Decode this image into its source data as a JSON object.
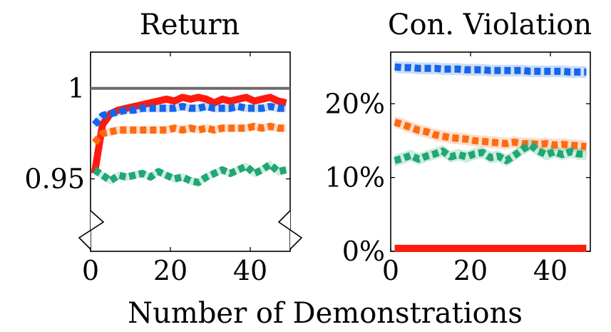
{
  "xlabel": "Number of Demonstrations",
  "chart_data": [
    {
      "type": "line",
      "title": "Return",
      "xlim": [
        0,
        50
      ],
      "ylim": [
        0.91,
        1.02
      ],
      "axis_break": true,
      "xticks": [
        0,
        20,
        40
      ],
      "xtick_labels": [
        "0",
        "20",
        "40"
      ],
      "yticks": [
        0.95,
        1
      ],
      "ytick_labels": [
        "0.95",
        "1"
      ],
      "x": [
        1,
        3,
        5,
        7,
        9,
        11,
        13,
        15,
        17,
        19,
        21,
        23,
        25,
        27,
        29,
        31,
        33,
        35,
        37,
        39,
        41,
        43,
        45,
        47,
        49
      ],
      "reference_line": {
        "y": 1.0,
        "color": "#6b6b6b"
      },
      "series": [
        {
          "color": "#ff1a0f",
          "style": "solid",
          "band": false,
          "values": [
            0.953,
            0.98,
            0.986,
            0.988,
            0.989,
            0.99,
            0.991,
            0.992,
            0.993,
            0.994,
            0.993,
            0.995,
            0.994,
            0.995,
            0.994,
            0.992,
            0.994,
            0.993,
            0.994,
            0.995,
            0.993,
            0.994,
            0.995,
            0.993,
            0.992
          ]
        },
        {
          "color": "#1565e8",
          "style": "dotted",
          "band": true,
          "values": [
            0.98,
            0.985,
            0.986,
            0.987,
            0.988,
            0.988,
            0.989,
            0.989,
            0.989,
            0.989,
            0.989,
            0.99,
            0.989,
            0.989,
            0.99,
            0.989,
            0.989,
            0.989,
            0.99,
            0.989,
            0.989,
            0.989,
            0.99,
            0.989,
            0.989
          ]
        },
        {
          "color": "#ff6a10",
          "style": "dotted",
          "band": true,
          "values": [
            0.97,
            0.975,
            0.976,
            0.977,
            0.977,
            0.977,
            0.977,
            0.977,
            0.977,
            0.977,
            0.978,
            0.977,
            0.978,
            0.977,
            0.978,
            0.977,
            0.978,
            0.978,
            0.978,
            0.978,
            0.979,
            0.978,
            0.979,
            0.978,
            0.978
          ]
        },
        {
          "color": "#1fa774",
          "style": "dotted",
          "band": true,
          "values": [
            0.955,
            0.952,
            0.949,
            0.952,
            0.951,
            0.952,
            0.953,
            0.951,
            0.954,
            0.952,
            0.95,
            0.951,
            0.949,
            0.948,
            0.951,
            0.953,
            0.955,
            0.953,
            0.955,
            0.957,
            0.953,
            0.955,
            0.958,
            0.954,
            0.955
          ]
        }
      ]
    },
    {
      "type": "line",
      "title": "Con. Violation",
      "xlim": [
        0,
        50
      ],
      "ylim": [
        0,
        27
      ],
      "xticks": [
        0,
        20,
        40
      ],
      "xtick_labels": [
        "0",
        "20",
        "40"
      ],
      "yticks": [
        0,
        10,
        20
      ],
      "ytick_labels": [
        "0%",
        "10%",
        "20%"
      ],
      "x": [
        1,
        3,
        5,
        7,
        9,
        11,
        13,
        15,
        17,
        19,
        21,
        23,
        25,
        27,
        29,
        31,
        33,
        35,
        37,
        39,
        41,
        43,
        45,
        47,
        49
      ],
      "series": [
        {
          "color": "#1565e8",
          "style": "dotted",
          "band": true,
          "values": [
            25.0,
            24.9,
            24.9,
            24.8,
            24.8,
            24.8,
            24.7,
            24.7,
            24.7,
            24.6,
            24.6,
            24.6,
            24.5,
            24.5,
            24.5,
            24.5,
            24.5,
            24.4,
            24.4,
            24.4,
            24.4,
            24.4,
            24.3,
            24.3,
            24.3
          ]
        },
        {
          "color": "#ff6a10",
          "style": "dotted",
          "band": true,
          "values": [
            17.5,
            17.2,
            16.8,
            16.4,
            16.2,
            15.8,
            15.6,
            15.4,
            15.3,
            15.2,
            15.0,
            14.9,
            14.8,
            14.7,
            14.6,
            14.8,
            14.6,
            14.6,
            14.5,
            14.6,
            14.4,
            14.5,
            14.4,
            14.3,
            14.2
          ]
        },
        {
          "color": "#1fa774",
          "style": "dotted",
          "band": true,
          "values": [
            12.3,
            12.6,
            13.0,
            12.5,
            12.9,
            13.2,
            13.6,
            12.8,
            13.1,
            12.8,
            13.2,
            13.4,
            12.7,
            12.9,
            12.3,
            13.0,
            13.8,
            14.4,
            13.6,
            13.1,
            13.5,
            13.1,
            13.5,
            13.2,
            13.2
          ]
        },
        {
          "color": "#ff1a0f",
          "style": "solid",
          "band": false,
          "values": [
            0.4,
            0.4,
            0.4,
            0.4,
            0.4,
            0.4,
            0.4,
            0.4,
            0.4,
            0.4,
            0.4,
            0.4,
            0.4,
            0.4,
            0.4,
            0.4,
            0.4,
            0.4,
            0.4,
            0.4,
            0.4,
            0.4,
            0.4,
            0.4,
            0.4
          ]
        }
      ]
    }
  ]
}
